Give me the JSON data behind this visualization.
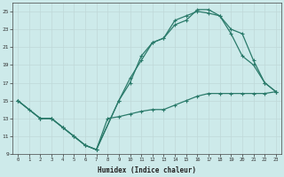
{
  "xlabel": "Humidex (Indice chaleur)",
  "ylabel": "",
  "bg_color": "#cdeaea",
  "grid_color": "#c0d8d8",
  "line_color": "#2a7a6a",
  "xlim": [
    -0.5,
    23.5
  ],
  "ylim": [
    9,
    26
  ],
  "xticks": [
    0,
    1,
    2,
    3,
    4,
    5,
    6,
    7,
    8,
    9,
    10,
    11,
    12,
    13,
    14,
    15,
    16,
    17,
    18,
    19,
    20,
    21,
    22,
    23
  ],
  "yticks": [
    9,
    11,
    13,
    15,
    17,
    19,
    21,
    23,
    25
  ],
  "line1_x": [
    0,
    1,
    2,
    3,
    4,
    5,
    6,
    7,
    8,
    9,
    10,
    11,
    12,
    13,
    14,
    15,
    16,
    17,
    18,
    19,
    20,
    21,
    22,
    23
  ],
  "line1_y": [
    15,
    14,
    13,
    13,
    12,
    11,
    10,
    9.5,
    13,
    13.2,
    13.5,
    13.8,
    14,
    14,
    14.5,
    15,
    15.5,
    15.8,
    15.8,
    15.8,
    15.8,
    15.8,
    15.8,
    16
  ],
  "line2_x": [
    0,
    2,
    3,
    4,
    5,
    6,
    7,
    9,
    10,
    11,
    12,
    13,
    14,
    15,
    16,
    17,
    18,
    19,
    20,
    21,
    22,
    23
  ],
  "line2_y": [
    15,
    13,
    13,
    12,
    11,
    10,
    9.5,
    15,
    17,
    20,
    21.5,
    22,
    23.5,
    24,
    25.2,
    25.2,
    24.5,
    22.5,
    20,
    19,
    17,
    16
  ],
  "line3_x": [
    0,
    2,
    3,
    4,
    5,
    6,
    7,
    9,
    10,
    11,
    12,
    13,
    14,
    15,
    16,
    17,
    18,
    19,
    20,
    21,
    22,
    23
  ],
  "line3_y": [
    15,
    13,
    13,
    12,
    11,
    10,
    9.5,
    15,
    17.5,
    19.5,
    21.5,
    22,
    24,
    24.5,
    25,
    24.8,
    24.5,
    23,
    22.5,
    19.5,
    17,
    16
  ]
}
